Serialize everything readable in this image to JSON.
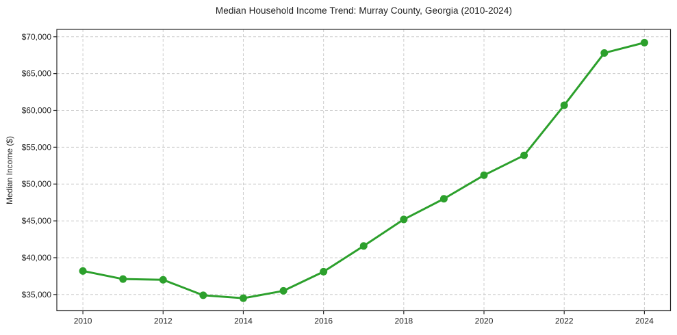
{
  "chart_data": {
    "type": "line",
    "title": "Median Household Income Trend: Murray County, Georgia (2010-2024)",
    "xlabel": "",
    "ylabel": "Median Income ($)",
    "x": [
      2010,
      2011,
      2012,
      2013,
      2014,
      2015,
      2016,
      2017,
      2018,
      2019,
      2020,
      2021,
      2022,
      2023,
      2024
    ],
    "y": [
      38200,
      37100,
      37000,
      34900,
      34500,
      35500,
      38100,
      41600,
      45200,
      48000,
      51200,
      53900,
      60700,
      67800,
      69200
    ],
    "x_ticks": {
      "values": [
        2010,
        2012,
        2014,
        2016,
        2018,
        2020,
        2022,
        2024
      ],
      "labels": [
        "2010",
        "2012",
        "2014",
        "2016",
        "2018",
        "2020",
        "2022",
        "2024"
      ]
    },
    "y_ticks": {
      "values": [
        35000,
        40000,
        45000,
        50000,
        55000,
        60000,
        65000,
        70000
      ],
      "labels": [
        "$35,000",
        "$40,000",
        "$45,000",
        "$50,000",
        "$55,000",
        "$60,000",
        "$65,000",
        "$70,000"
      ]
    },
    "xlim": [
      2009.35,
      2024.65
    ],
    "ylim": [
      32800,
      71000
    ],
    "grid": true,
    "grid_style": "dashed",
    "legend": "none",
    "colors": {
      "line": "#2ca02c",
      "marker": "#2ca02c",
      "grid": "#cccccc",
      "spine": "#262626",
      "tick_text": "#262626",
      "background": "#ffffff"
    }
  }
}
